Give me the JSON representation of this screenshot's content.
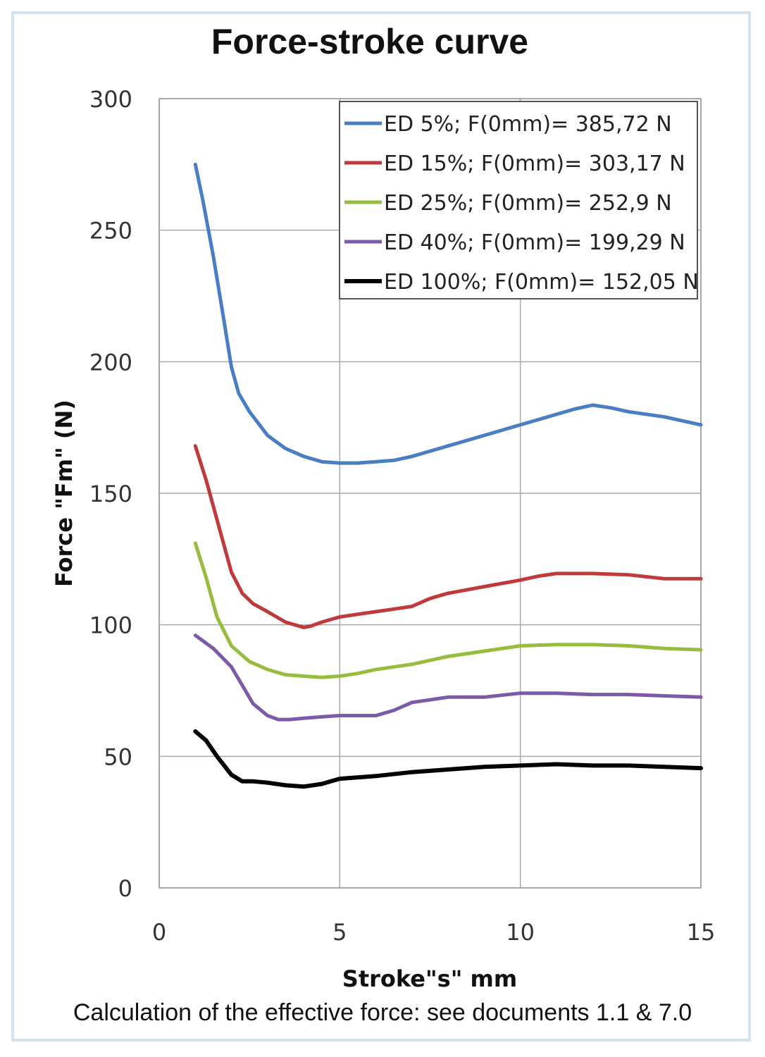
{
  "chart_data": {
    "type": "line",
    "title": "Force-stroke curve",
    "xlabel": "Stroke\"s\" mm",
    "ylabel": "Force \"Fm\" (N)",
    "xlim": [
      0,
      15
    ],
    "ylim": [
      0,
      300
    ],
    "xticks": [
      0,
      5,
      10,
      15
    ],
    "yticks": [
      0,
      50,
      100,
      150,
      200,
      250,
      300
    ],
    "grid": true,
    "legend_position": "top-right",
    "series": [
      {
        "name": "ED 5%; F(0mm)= 385,72 N",
        "color": "#4a7ec3",
        "x": [
          1,
          1.2,
          1.5,
          1.8,
          2,
          2.2,
          2.5,
          3,
          3.5,
          4,
          4.5,
          5,
          5.5,
          6,
          6.5,
          7,
          8,
          9,
          10,
          11,
          11.5,
          12,
          12.5,
          13,
          14,
          15
        ],
        "y": [
          275,
          262,
          240,
          215,
          198,
          188,
          181,
          172,
          167,
          164,
          162,
          161.5,
          161.5,
          162,
          162.5,
          164,
          168,
          172,
          176,
          180,
          182,
          183.5,
          182.5,
          181,
          179,
          176
        ]
      },
      {
        "name": "ED 15%; F(0mm)= 303,17 N",
        "color": "#c0393b",
        "x": [
          1,
          1.3,
          1.6,
          2,
          2.3,
          2.6,
          3,
          3.5,
          4,
          4.2,
          4.5,
          5,
          5.5,
          6,
          6.5,
          7,
          7.5,
          8,
          9,
          10,
          10.5,
          11,
          12,
          13,
          14,
          15
        ],
        "y": [
          168,
          155,
          140,
          120,
          112,
          108,
          105,
          101,
          99,
          99.5,
          101,
          103,
          104,
          105,
          106,
          107,
          110,
          112,
          114.5,
          117,
          118.5,
          119.5,
          119.5,
          119,
          117.5,
          117.5
        ]
      },
      {
        "name": "ED 25%; F(0mm)= 252,9 N",
        "color": "#97bd3f",
        "x": [
          1,
          1.3,
          1.6,
          2,
          2.5,
          3,
          3.5,
          4,
          4.5,
          5,
          5.5,
          6,
          7,
          8,
          9,
          10,
          11,
          12,
          13,
          14,
          15
        ],
        "y": [
          131,
          118,
          103,
          92,
          86,
          83,
          81,
          80.5,
          80,
          80.5,
          81.5,
          83,
          85,
          88,
          90,
          92,
          92.5,
          92.5,
          92,
          91,
          90.5
        ]
      },
      {
        "name": "ED 40%; F(0mm)= 199,29 N",
        "color": "#7b5ba8",
        "x": [
          1,
          1.5,
          2,
          2.3,
          2.6,
          3,
          3.3,
          3.6,
          4,
          4.5,
          5,
          5.5,
          6,
          6.5,
          7,
          8,
          9,
          10,
          11,
          12,
          13,
          14,
          15
        ],
        "y": [
          96,
          91,
          84,
          77,
          70,
          65.5,
          64,
          64,
          64.5,
          65,
          65.5,
          65.5,
          65.5,
          67.5,
          70.5,
          72.5,
          72.5,
          74,
          74,
          73.5,
          73.5,
          73,
          72.5
        ]
      },
      {
        "name": "ED 100%; F(0mm)= 152,05 N",
        "color": "#000000",
        "x": [
          1,
          1.3,
          1.6,
          2,
          2.3,
          2.6,
          3,
          3.5,
          4,
          4.5,
          5,
          6,
          7,
          8,
          9,
          10,
          11,
          12,
          13,
          14,
          15
        ],
        "y": [
          59.5,
          56,
          50,
          43,
          40.5,
          40.5,
          40,
          39,
          38.5,
          39.5,
          41.5,
          42.5,
          44,
          45,
          46,
          46.5,
          47,
          46.5,
          46.5,
          46,
          45.5
        ]
      }
    ]
  },
  "caption": "Calculation of the effective force: see documents 1.1 & 7.0"
}
